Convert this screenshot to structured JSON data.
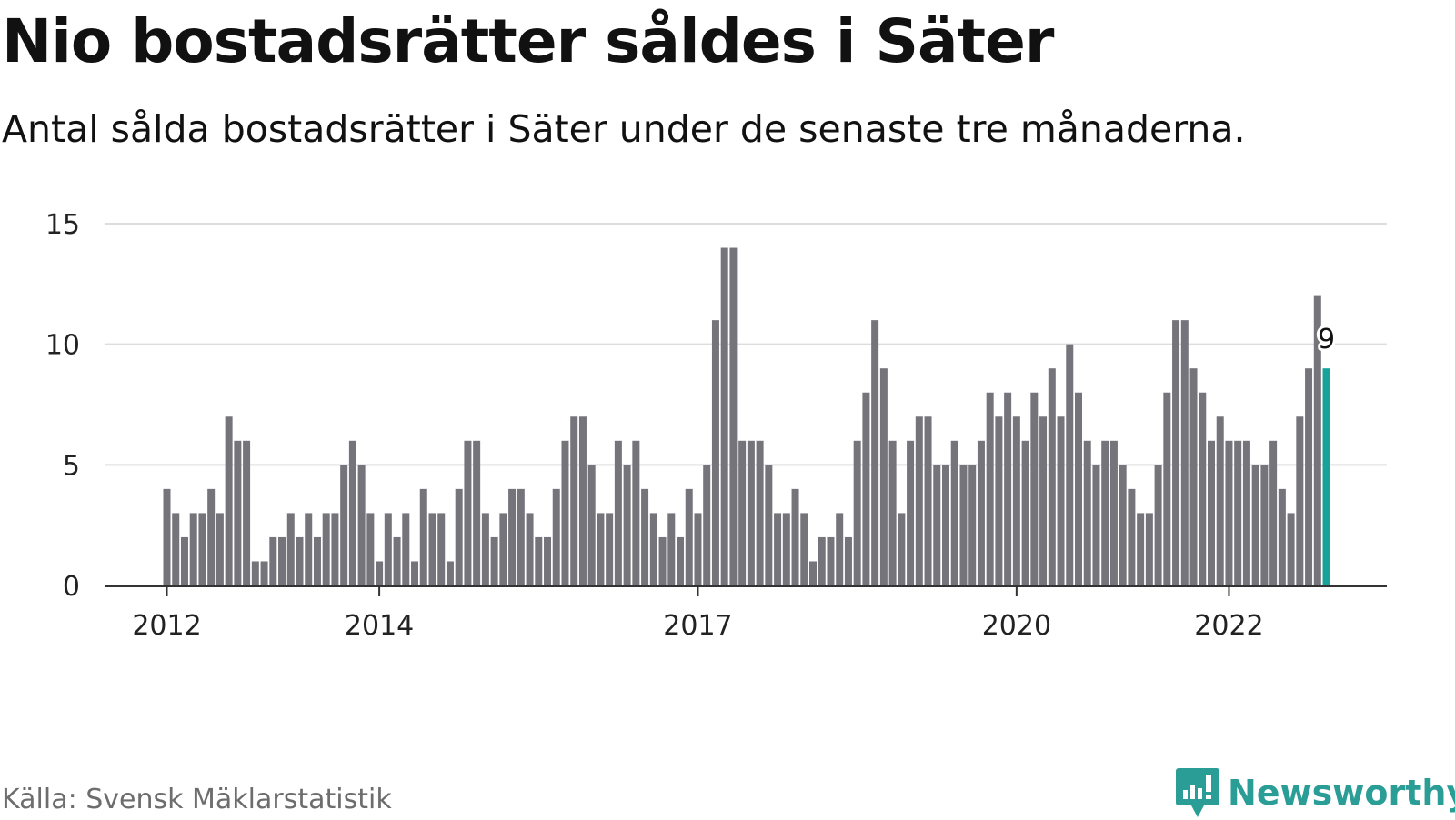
{
  "title": "Nio bostadsrätter såldes i Säter",
  "subtitle": "Antal sålda bostadsrätter i Säter under de senaste tre månaderna.",
  "source": "Källa: Svensk Mäklarstatistik",
  "brand": {
    "name": "Newsworthy",
    "icon": "newsworthy-logo-icon",
    "color": "#2a9d96"
  },
  "colors": {
    "bar": "#75747a",
    "highlight": "#16a39a",
    "grid": "#dddddd",
    "axis": "#333333"
  },
  "chart_data": {
    "type": "bar",
    "x_unit": "month",
    "x_start": "2012-01",
    "x_ticks": [
      {
        "label": "2012",
        "x": "2012-01"
      },
      {
        "label": "2014",
        "x": "2014-01"
      },
      {
        "label": "2017",
        "x": "2017-01"
      },
      {
        "label": "2020",
        "x": "2020-01"
      },
      {
        "label": "2022",
        "x": "2022-01"
      }
    ],
    "y_ticks": [
      0,
      5,
      10,
      15
    ],
    "ylim": [
      0,
      15
    ],
    "grid": true,
    "values": [
      4,
      3,
      2,
      3,
      3,
      4,
      3,
      7,
      6,
      6,
      1,
      1,
      2,
      2,
      3,
      2,
      3,
      2,
      3,
      3,
      5,
      6,
      5,
      3,
      1,
      3,
      2,
      3,
      1,
      4,
      3,
      3,
      1,
      4,
      6,
      6,
      3,
      2,
      3,
      4,
      4,
      3,
      2,
      2,
      4,
      6,
      7,
      7,
      5,
      3,
      3,
      6,
      5,
      6,
      4,
      3,
      2,
      3,
      2,
      4,
      3,
      5,
      11,
      14,
      14,
      6,
      6,
      6,
      5,
      3,
      3,
      4,
      3,
      1,
      2,
      2,
      3,
      2,
      6,
      8,
      11,
      9,
      6,
      3,
      6,
      7,
      7,
      5,
      5,
      6,
      5,
      5,
      6,
      8,
      7,
      8,
      7,
      6,
      8,
      7,
      9,
      7,
      10,
      8,
      6,
      5,
      6,
      6,
      5,
      4,
      3,
      3,
      5,
      8,
      11,
      11,
      9,
      8,
      6,
      7,
      6,
      6,
      6,
      5,
      5,
      6,
      4,
      3,
      7,
      9,
      12,
      9
    ],
    "highlight_index": 131,
    "highlight_label": "9"
  }
}
